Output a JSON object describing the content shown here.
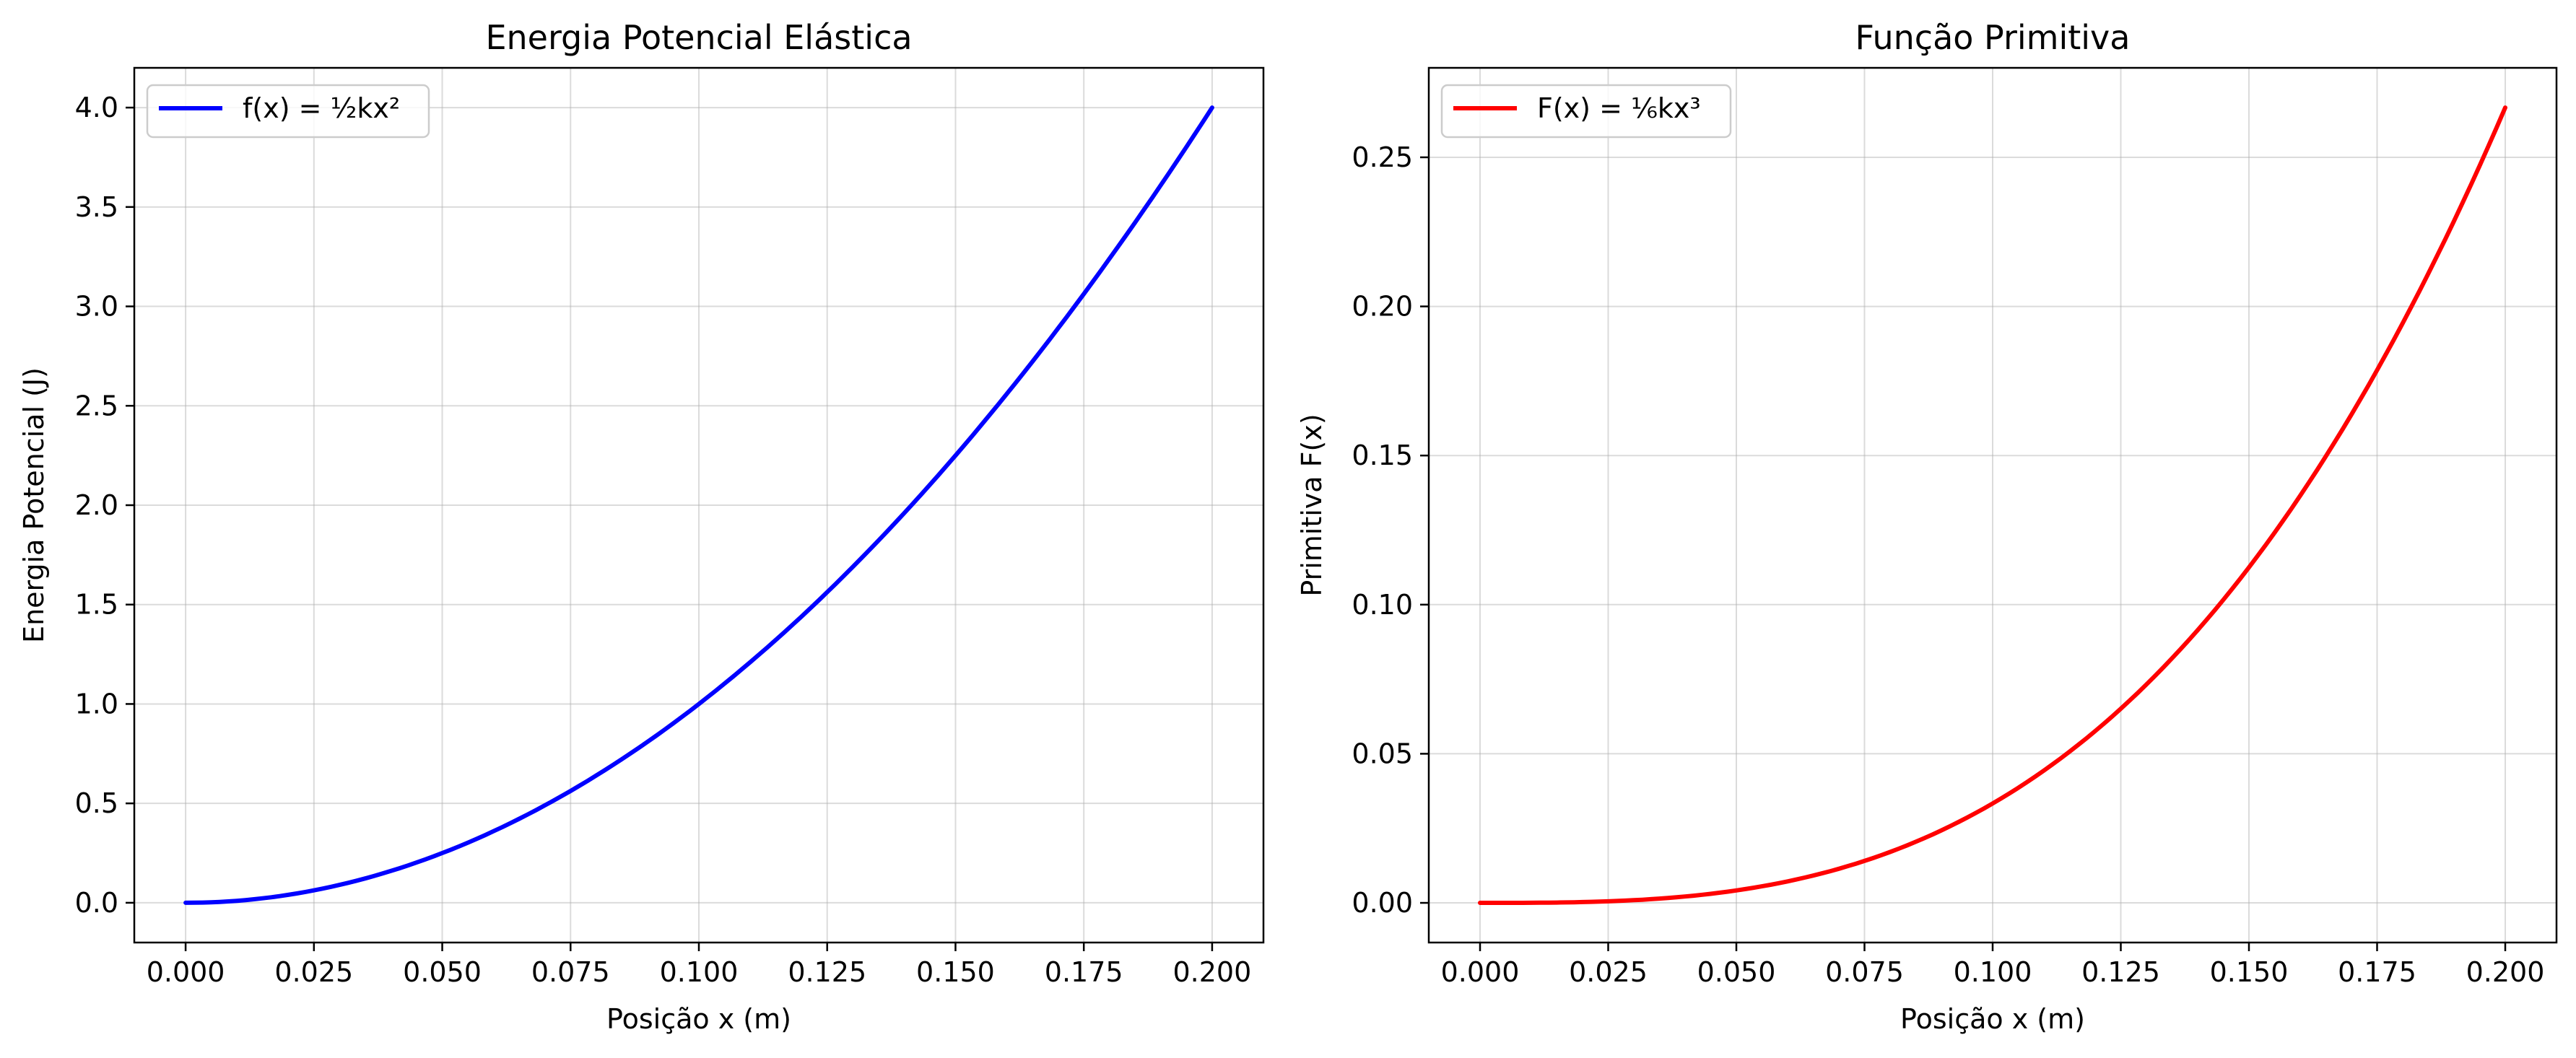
{
  "chart_data": [
    {
      "type": "line",
      "title": "Energia Potencial Elástica",
      "xlabel": "Posição x (m)",
      "ylabel": "Energia Potencial (J)",
      "xlim": [
        -0.01,
        0.21
      ],
      "ylim": [
        -0.2,
        4.2
      ],
      "xticks": [
        0.0,
        0.025,
        0.05,
        0.075,
        0.1,
        0.125,
        0.15,
        0.175,
        0.2
      ],
      "xtick_labels": [
        "0.000",
        "0.025",
        "0.050",
        "0.075",
        "0.100",
        "0.125",
        "0.150",
        "0.175",
        "0.200"
      ],
      "yticks": [
        0.0,
        0.5,
        1.0,
        1.5,
        2.0,
        2.5,
        3.0,
        3.5,
        4.0
      ],
      "ytick_labels": [
        "0.0",
        "0.5",
        "1.0",
        "1.5",
        "2.0",
        "2.5",
        "3.0",
        "3.5",
        "4.0"
      ],
      "grid": true,
      "legend_position": "upper-left",
      "series": [
        {
          "name": "f(x) = ½kx²",
          "color": "#0000ff",
          "x": [
            0.0,
            0.0125,
            0.025,
            0.0375,
            0.05,
            0.0625,
            0.075,
            0.0875,
            0.1,
            0.1125,
            0.125,
            0.1375,
            0.15,
            0.1625,
            0.175,
            0.1875,
            0.2
          ],
          "y": [
            0.0,
            0.0156,
            0.0625,
            0.1406,
            0.25,
            0.3906,
            0.5625,
            0.7656,
            1.0,
            1.2656,
            1.5625,
            1.8906,
            2.25,
            2.6406,
            3.0625,
            3.5156,
            4.0
          ]
        }
      ]
    },
    {
      "type": "line",
      "title": "Função Primitiva",
      "xlabel": "Posição x (m)",
      "ylabel": "Primitiva F(x)",
      "xlim": [
        -0.01,
        0.21
      ],
      "ylim": [
        -0.0133,
        0.28
      ],
      "xticks": [
        0.0,
        0.025,
        0.05,
        0.075,
        0.1,
        0.125,
        0.15,
        0.175,
        0.2
      ],
      "xtick_labels": [
        "0.000",
        "0.025",
        "0.050",
        "0.075",
        "0.100",
        "0.125",
        "0.150",
        "0.175",
        "0.200"
      ],
      "yticks": [
        0.0,
        0.05,
        0.1,
        0.15,
        0.2,
        0.25
      ],
      "ytick_labels": [
        "0.00",
        "0.05",
        "0.10",
        "0.15",
        "0.20",
        "0.25"
      ],
      "grid": true,
      "legend_position": "upper-left",
      "series": [
        {
          "name": "F(x) = ⅙kx³",
          "color": "#ff0000",
          "x": [
            0.0,
            0.0125,
            0.025,
            0.0375,
            0.05,
            0.0625,
            0.075,
            0.0875,
            0.1,
            0.1125,
            0.125,
            0.1375,
            0.15,
            0.1625,
            0.175,
            0.1875,
            0.2
          ],
          "y": [
            0.0,
            7e-05,
            0.00052,
            0.00176,
            0.00417,
            0.00814,
            0.01406,
            0.02233,
            0.03333,
            0.04746,
            0.0651,
            0.08665,
            0.1125,
            0.14303,
            0.17865,
            0.21973,
            0.26667
          ]
        }
      ]
    }
  ]
}
